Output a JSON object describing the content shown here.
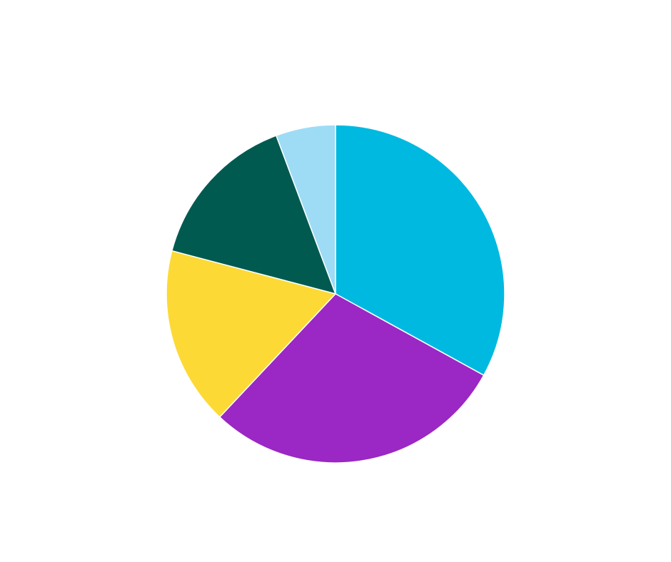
{
  "chart_data": {
    "type": "pie",
    "title": "",
    "legend": "none",
    "start_angle": "12 o'clock",
    "direction": "clockwise",
    "slices": [
      {
        "value": 33.0,
        "color": "#00B9E0"
      },
      {
        "value": 29.0,
        "color": "#9B27C4"
      },
      {
        "value": 17.1,
        "color": "#FDD935"
      },
      {
        "value": 15.2,
        "color": "#005A50"
      },
      {
        "value": 5.7,
        "color": "#9EDCF6"
      }
    ]
  }
}
